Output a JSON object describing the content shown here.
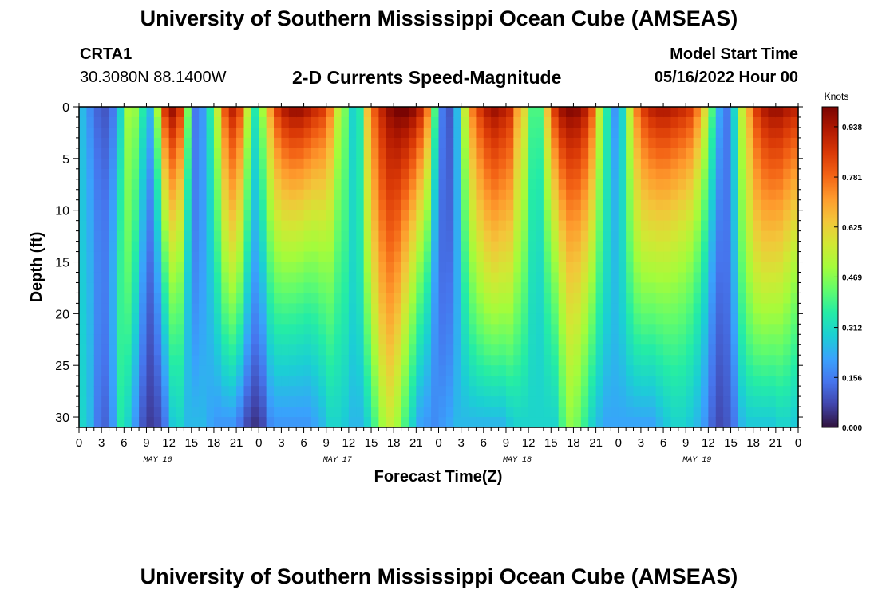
{
  "header": {
    "title": "University of Southern Mississippi Ocean Cube (AMSEAS)",
    "station": "CRTA1",
    "coords": "30.3080N  88.1400W",
    "product": "2-D Currents Speed-Magnitude",
    "model_label": "Model Start Time",
    "model_time": "05/16/2022 Hour 00"
  },
  "footer": {
    "title": "University of Southern Mississippi Ocean Cube (AMSEAS)"
  },
  "colors": {
    "ramp": [
      "#30123b",
      "#4145ab",
      "#4675ed",
      "#39a2fc",
      "#1bcfd4",
      "#24eca6",
      "#61fc6c",
      "#a4fc3b",
      "#d1e834",
      "#f3c63a",
      "#fe9b2d",
      "#f36315",
      "#d93806",
      "#b11901",
      "#7a0402"
    ]
  },
  "chart_data": {
    "type": "heatmap",
    "title": "2-D Currents Speed-Magnitude",
    "xlabel": "Forecast Time(Z)",
    "ylabel": "Depth (ft)",
    "xlim_hours": [
      0,
      96
    ],
    "ylim": [
      0,
      31
    ],
    "x_ticks": [
      "0",
      "3",
      "6",
      "9",
      "12",
      "15",
      "18",
      "21",
      "0",
      "3",
      "6",
      "9",
      "12",
      "15",
      "18",
      "21",
      "0",
      "3",
      "6",
      "9",
      "12",
      "15",
      "18",
      "21",
      "0",
      "3",
      "6",
      "9",
      "12",
      "15",
      "18",
      "21",
      "0"
    ],
    "y_ticks": [
      "0",
      "5",
      "10",
      "15",
      "20",
      "25",
      "30"
    ],
    "day_labels": [
      "MAY 16",
      "MAY 17",
      "MAY 18",
      "MAY 19"
    ],
    "colorbar": {
      "label": "Knots",
      "ticks": [
        "0.938",
        "0.781",
        "0.625",
        "0.469",
        "0.312",
        "0.156",
        "0.000"
      ],
      "range": [
        0,
        1.0
      ]
    },
    "surface_speed_by_hour": [
      0.25,
      0.18,
      0.12,
      0.1,
      0.15,
      0.3,
      0.5,
      0.48,
      0.35,
      0.25,
      0.5,
      0.85,
      0.95,
      0.85,
      0.45,
      0.15,
      0.2,
      0.35,
      0.55,
      0.8,
      0.9,
      0.82,
      0.55,
      0.35,
      0.5,
      0.7,
      0.85,
      0.92,
      0.95,
      0.95,
      0.92,
      0.88,
      0.85,
      0.75,
      0.55,
      0.45,
      0.3,
      0.35,
      0.65,
      0.8,
      0.9,
      0.97,
      1.0,
      1.0,
      0.97,
      0.9,
      0.75,
      0.4,
      0.15,
      0.1,
      0.25,
      0.55,
      0.75,
      0.85,
      0.92,
      0.95,
      0.92,
      0.88,
      0.7,
      0.6,
      0.4,
      0.4,
      0.65,
      0.85,
      0.95,
      0.98,
      0.97,
      0.92,
      0.8,
      0.55,
      0.35,
      0.2,
      0.3,
      0.55,
      0.75,
      0.85,
      0.9,
      0.92,
      0.92,
      0.9,
      0.88,
      0.85,
      0.75,
      0.6,
      0.4,
      0.22,
      0.15,
      0.3,
      0.55,
      0.7,
      0.85,
      0.92,
      0.95,
      0.95,
      0.92,
      0.9
    ],
    "deep_speed_by_hour": [
      0.3,
      0.25,
      0.15,
      0.12,
      0.2,
      0.35,
      0.3,
      0.2,
      0.1,
      0.06,
      0.08,
      0.15,
      0.28,
      0.3,
      0.25,
      0.25,
      0.25,
      0.22,
      0.2,
      0.2,
      0.2,
      0.15,
      0.08,
      0.05,
      0.08,
      0.18,
      0.2,
      0.2,
      0.2,
      0.2,
      0.2,
      0.22,
      0.25,
      0.3,
      0.3,
      0.28,
      0.25,
      0.25,
      0.3,
      0.4,
      0.5,
      0.55,
      0.5,
      0.4,
      0.3,
      0.22,
      0.2,
      0.18,
      0.2,
      0.22,
      0.25,
      0.25,
      0.25,
      0.25,
      0.25,
      0.25,
      0.25,
      0.28,
      0.3,
      0.3,
      0.3,
      0.3,
      0.3,
      0.3,
      0.4,
      0.48,
      0.45,
      0.38,
      0.3,
      0.25,
      0.22,
      0.22,
      0.22,
      0.22,
      0.22,
      0.22,
      0.22,
      0.25,
      0.28,
      0.3,
      0.3,
      0.28,
      0.25,
      0.2,
      0.12,
      0.08,
      0.1,
      0.15,
      0.25,
      0.28,
      0.28,
      0.28,
      0.28,
      0.3,
      0.3,
      0.28
    ]
  }
}
